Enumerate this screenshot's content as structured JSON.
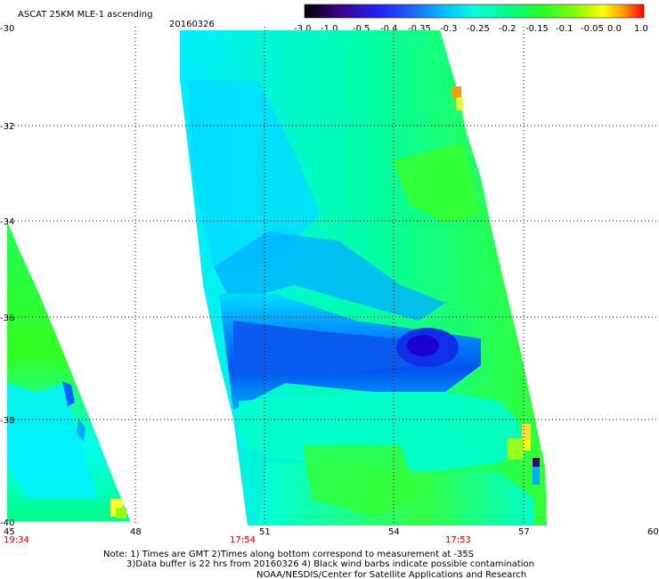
{
  "header": {
    "title": "ASCAT 25KM MLE-1 ascending",
    "date": "20160326"
  },
  "colorbar": {
    "labels": [
      "-3.0",
      "-1.0",
      "-0.5",
      "-0.4",
      "-0.35",
      "-0.3",
      "-0.25",
      "-0.2",
      "-0.15",
      "-0.1",
      "-0.05",
      "0.0",
      "1.0"
    ],
    "colors": [
      "#000000",
      "#2a006a",
      "#5a00c8",
      "#0000ff",
      "#0066ff",
      "#00ccff",
      "#00ffcc",
      "#00ff66",
      "#33ff00",
      "#aaff00",
      "#ffff00",
      "#ff9900",
      "#ff0000"
    ]
  },
  "axes": {
    "lat_labels": [
      "-30",
      "-32",
      "-34",
      "-36",
      "-38",
      "-40"
    ],
    "lon_labels": [
      "45",
      "48",
      "51",
      "54",
      "57",
      "60"
    ]
  },
  "times": {
    "left": "19:34",
    "middle": "17:54",
    "right": "17:53"
  },
  "notes": {
    "line1": "Note: 1) Times are GMT 2)Times along bottom correspond to measurement at -35S",
    "line2": "3)Data buffer is 22 hrs from 20160326 4) Black wind barbs indicate possible contamination",
    "line3": "NOAA/NESDIS/Center for Satellite Applications and Research"
  }
}
